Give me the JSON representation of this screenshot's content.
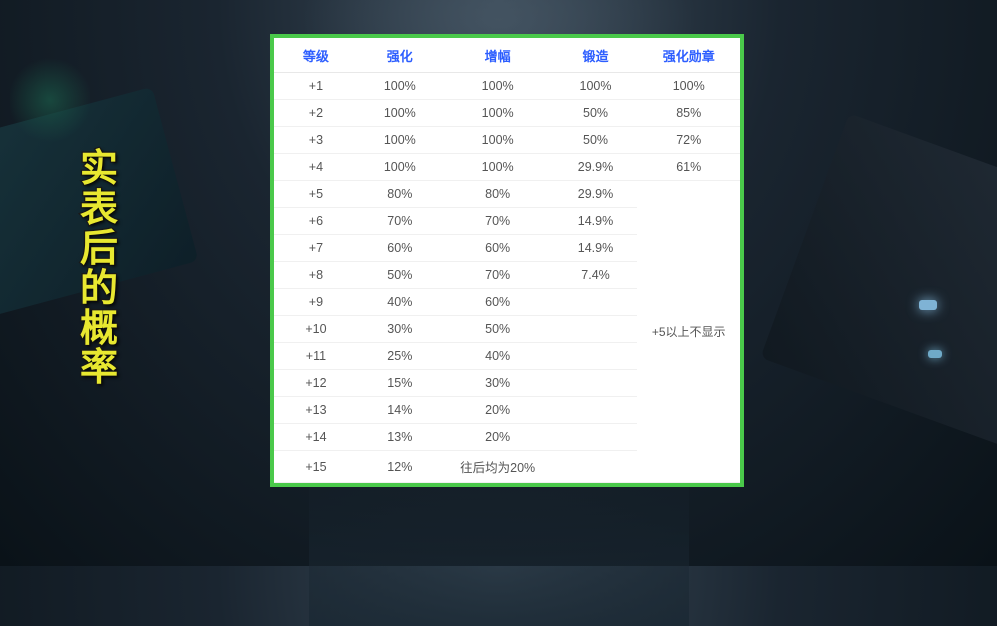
{
  "sideTitle": [
    "实",
    "表",
    "后",
    "的",
    "概",
    "率"
  ],
  "table": {
    "headers": [
      "等级",
      "强化",
      "增幅",
      "锻造",
      "强化勋章"
    ],
    "rows": [
      {
        "level": "+1",
        "enhance": "100%",
        "amp": "100%",
        "forge": "100%",
        "medal": "100%"
      },
      {
        "level": "+2",
        "enhance": "100%",
        "amp": "100%",
        "forge": "50%",
        "medal": "85%"
      },
      {
        "level": "+3",
        "enhance": "100%",
        "amp": "100%",
        "forge": "50%",
        "medal": "72%"
      },
      {
        "level": "+4",
        "enhance": "100%",
        "amp": "100%",
        "forge": "29.9%",
        "medal": "61%"
      },
      {
        "level": "+5",
        "enhance": "80%",
        "amp": "80%",
        "forge": "29.9%",
        "medal": ""
      },
      {
        "level": "+6",
        "enhance": "70%",
        "amp": "70%",
        "forge": "14.9%",
        "medal": ""
      },
      {
        "level": "+7",
        "enhance": "60%",
        "amp": "60%",
        "forge": "14.9%",
        "medal": ""
      },
      {
        "level": "+8",
        "enhance": "50%",
        "amp": "70%",
        "forge": "7.4%",
        "medal": ""
      },
      {
        "level": "+9",
        "enhance": "40%",
        "amp": "60%",
        "forge": "",
        "medal": ""
      },
      {
        "level": "+10",
        "enhance": "30%",
        "amp": "50%",
        "forge": "",
        "medal": ""
      },
      {
        "level": "+11",
        "enhance": "25%",
        "amp": "40%",
        "forge": "",
        "medal": ""
      },
      {
        "level": "+12",
        "enhance": "15%",
        "amp": "30%",
        "forge": "",
        "medal": ""
      },
      {
        "level": "+13",
        "enhance": "14%",
        "amp": "20%",
        "forge": "",
        "medal": ""
      },
      {
        "level": "+14",
        "enhance": "13%",
        "amp": "20%",
        "forge": "",
        "medal": ""
      },
      {
        "level": "+15",
        "enhance": "12%",
        "amp": "往后均为20%",
        "forge": "",
        "medal": ""
      }
    ],
    "medalNote": "+5以上不显示",
    "medalNoteSpanStart": 4,
    "colWidths": [
      "18%",
      "18%",
      "24%",
      "18%",
      "22%"
    ],
    "headerColor": "#2d5eff",
    "cellColor": "#555555",
    "borderColor": "#4ac94a",
    "bgColor": "#ffffff",
    "rowBorderColor": "#f0f0f0",
    "headerFontSize": 13,
    "cellFontSize": 12.5
  },
  "sideTitleStyle": {
    "color": "#e8e830",
    "strokeColor": "#1a1a1a",
    "fontSize": 38
  }
}
